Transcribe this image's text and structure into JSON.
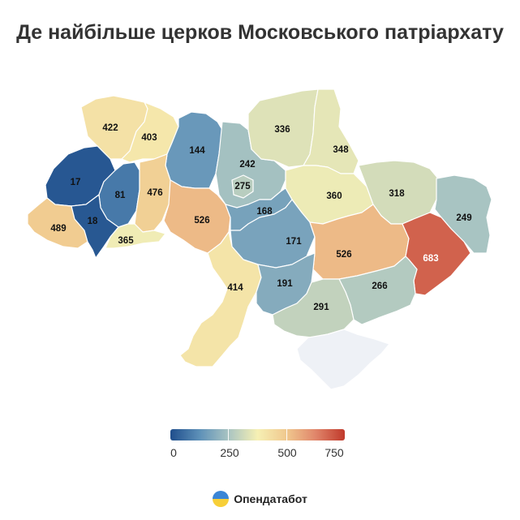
{
  "title": "Де найбільше церков Московського патріархату",
  "chart_data": {
    "type": "choropleth",
    "title": "Де найбільше церков Московського патріархату",
    "color_scale": {
      "min": 0,
      "max": 750,
      "ticks": [
        "0",
        "250",
        "500",
        "750"
      ],
      "colors": [
        "#1f4e8c",
        "#5d90b8",
        "#a9c4c2",
        "#f6f0b4",
        "#f0c88e",
        "#e0856a",
        "#c0392b"
      ]
    },
    "regions": [
      {
        "id": "volyn",
        "value": 422
      },
      {
        "id": "rivne",
        "value": 403
      },
      {
        "id": "zhytomyr",
        "value": 144
      },
      {
        "id": "kyiv-oblast",
        "value": 242
      },
      {
        "id": "kyiv-city",
        "value": 275
      },
      {
        "id": "chernihiv",
        "value": 336
      },
      {
        "id": "sumy",
        "value": 348
      },
      {
        "id": "poltava",
        "value": 360
      },
      {
        "id": "kharkiv",
        "value": 318
      },
      {
        "id": "luhansk",
        "value": 249
      },
      {
        "id": "lviv",
        "value": 17
      },
      {
        "id": "ternopil",
        "value": 81
      },
      {
        "id": "khmelnytskyi",
        "value": 476
      },
      {
        "id": "vinnytsia",
        "value": 526
      },
      {
        "id": "cherkasy",
        "value": 168
      },
      {
        "id": "kirovohrad",
        "value": 171
      },
      {
        "id": "dnipropetrovsk",
        "value": 526
      },
      {
        "id": "donetsk",
        "value": 683
      },
      {
        "id": "zakarpattia",
        "value": 489
      },
      {
        "id": "ivano-frankivsk",
        "value": 18
      },
      {
        "id": "chernivtsi",
        "value": 365
      },
      {
        "id": "odesa",
        "value": 414
      },
      {
        "id": "mykolaiv",
        "value": 191
      },
      {
        "id": "zaporizhzhia",
        "value": 266
      },
      {
        "id": "kherson",
        "value": 291
      },
      {
        "id": "crimea",
        "value": null
      }
    ]
  },
  "brand": {
    "logo_icon": "opendatabot-logo-icon",
    "name": "Опендатабот"
  }
}
